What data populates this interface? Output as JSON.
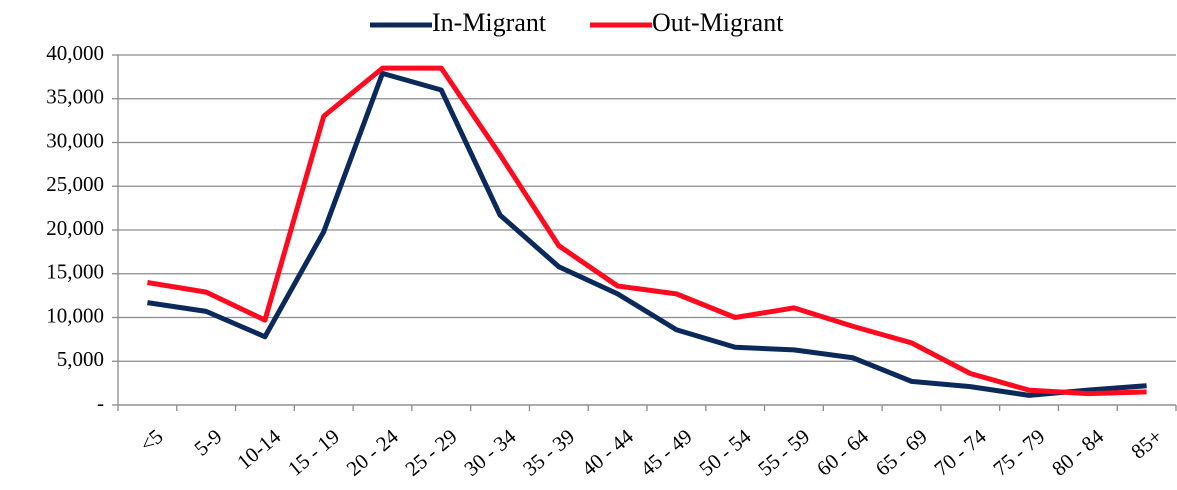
{
  "chart_data": {
    "type": "line",
    "categories": [
      "<5",
      "5-9",
      "10-14",
      "15 - 19",
      "20 - 24",
      "25 - 29",
      "30 - 34",
      "35 - 39",
      "40 - 44",
      "45 - 49",
      "50 - 54",
      "55 - 59",
      "60 - 64",
      "65 - 69",
      "70 - 74",
      "75 - 79",
      "80 - 84",
      "85+"
    ],
    "series": [
      {
        "name": "In-Migrant",
        "color": "#0b2a5b",
        "values": [
          11700,
          10700,
          7800,
          19800,
          37900,
          36000,
          21700,
          15800,
          12700,
          8600,
          6600,
          6300,
          5400,
          2700,
          2100,
          1100,
          1700,
          2200
        ]
      },
      {
        "name": "Out-Migrant",
        "color": "#ff0a1e",
        "values": [
          14000,
          12900,
          9700,
          33000,
          38500,
          38500,
          28600,
          18200,
          13600,
          12700,
          10000,
          11100,
          9000,
          7100,
          3600,
          1700,
          1300,
          1500
        ]
      }
    ],
    "ylim": [
      0,
      40000
    ],
    "yticks": [
      {
        "value": 0,
        "label": "-"
      },
      {
        "value": 5000,
        "label": "5,000"
      },
      {
        "value": 10000,
        "label": "10,000"
      },
      {
        "value": 15000,
        "label": "15,000"
      },
      {
        "value": 20000,
        "label": "20,000"
      },
      {
        "value": 25000,
        "label": "25,000"
      },
      {
        "value": 30000,
        "label": "30,000"
      },
      {
        "value": 35000,
        "label": "35,000"
      },
      {
        "value": 40000,
        "label": "40,000"
      }
    ],
    "grid": true,
    "legend": "top"
  }
}
